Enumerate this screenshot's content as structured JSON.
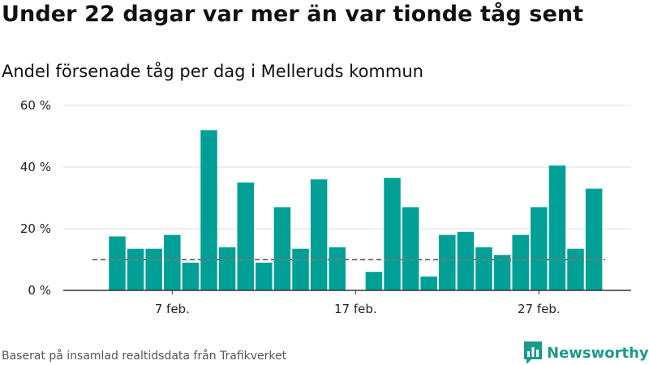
{
  "title": "Under 22 dagar var mer än var tionde tåg sent",
  "subtitle": "Andel försenade tåg per dag i Melleruds kommun",
  "source": "Baserat på insamlad realtidsdata från Trafikverket",
  "brand": {
    "name": "Newsworthy",
    "color": "#1a9a8a"
  },
  "colors": {
    "bar": "#00a096",
    "grid": "#dddddd",
    "axis": "#333333",
    "reference_line": "#777777"
  },
  "chart_data": {
    "type": "bar",
    "x_type": "day",
    "x": [
      4,
      5,
      6,
      7,
      8,
      9,
      10,
      11,
      12,
      13,
      14,
      15,
      16,
      17,
      18,
      19,
      20,
      21,
      22,
      23,
      24,
      25,
      26,
      27,
      28,
      29,
      30
    ],
    "values": [
      17.5,
      13.5,
      13.5,
      18,
      9,
      52,
      14,
      35,
      9,
      27,
      13.5,
      36,
      14,
      null,
      6,
      36.5,
      27,
      4.5,
      18,
      19,
      14,
      11.5,
      18,
      27,
      40.5,
      13.5,
      33
    ],
    "unit": "%",
    "ylim": [
      0,
      60
    ],
    "yticks": [
      {
        "value": 0,
        "label": "0 %"
      },
      {
        "value": 20,
        "label": "20 %"
      },
      {
        "value": 40,
        "label": "40 %"
      },
      {
        "value": 60,
        "label": "60 %"
      }
    ],
    "xticks": [
      {
        "value": 7,
        "label": "7 feb."
      },
      {
        "value": 17,
        "label": "17 feb."
      },
      {
        "value": 27,
        "label": "27 feb."
      }
    ],
    "reference_line": 10,
    "grid": true,
    "legend": "none"
  }
}
